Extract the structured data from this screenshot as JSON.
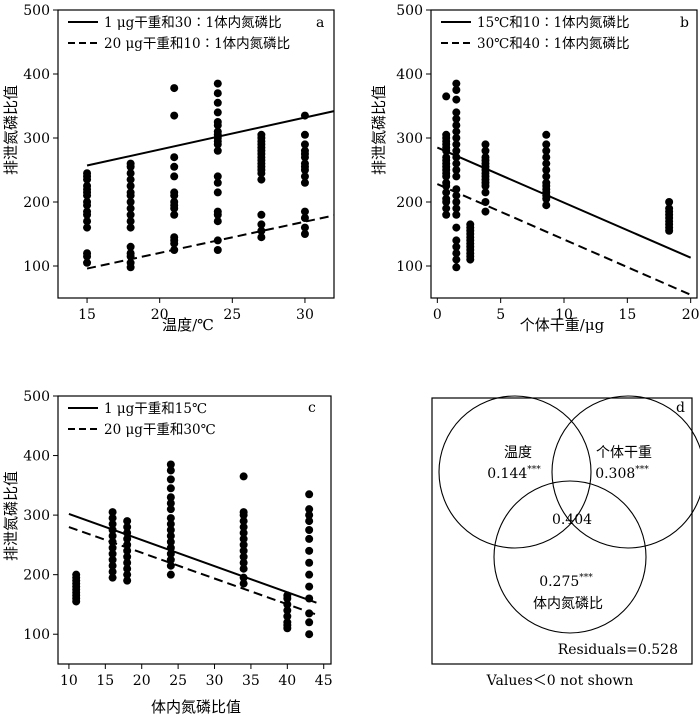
{
  "chart_data": [
    {
      "type": "scatter",
      "panel": "a",
      "xlabel": "温度/℃",
      "ylabel": "排泄氮磷比值",
      "xlim": [
        13,
        32
      ],
      "ylim": [
        50,
        500
      ],
      "xticks": [
        15,
        20,
        25,
        30
      ],
      "yticks": [
        100,
        200,
        300,
        400,
        500
      ],
      "legend": {
        "placement": "top-left"
      },
      "lines": [
        {
          "name": "1 μg干重和30∶1体内氮磷比",
          "style": "solid",
          "x": [
            15,
            32
          ],
          "y": [
            257,
            342
          ]
        },
        {
          "name": "20 μg干重和10∶1体内氮磷比",
          "style": "dashed",
          "x": [
            15,
            32
          ],
          "y": [
            96,
            179
          ]
        }
      ],
      "points": [
        {
          "x": 15,
          "y": [
            105,
            115,
            120,
            160,
            170,
            180,
            185,
            195,
            200,
            210,
            215,
            220,
            225,
            235,
            240,
            245
          ]
        },
        {
          "x": 18,
          "y": [
            98,
            105,
            115,
            120,
            130,
            160,
            170,
            180,
            190,
            200,
            210,
            215,
            225,
            235,
            245,
            255,
            260
          ]
        },
        {
          "x": 21,
          "y": [
            125,
            135,
            140,
            145,
            180,
            190,
            195,
            200,
            210,
            215,
            240,
            255,
            270,
            335,
            378
          ]
        },
        {
          "x": 24,
          "y": [
            125,
            140,
            170,
            180,
            185,
            215,
            230,
            240,
            280,
            290,
            295,
            300,
            305,
            310,
            320,
            325,
            340,
            355,
            370,
            385
          ]
        },
        {
          "x": 27,
          "y": [
            145,
            155,
            165,
            180,
            235,
            245,
            250,
            255,
            260,
            265,
            270,
            275,
            280,
            285,
            290,
            295,
            300,
            305
          ]
        },
        {
          "x": 30,
          "y": [
            150,
            160,
            175,
            185,
            230,
            240,
            250,
            255,
            260,
            270,
            275,
            280,
            290,
            305,
            335
          ]
        }
      ]
    },
    {
      "type": "scatter",
      "panel": "b",
      "xlabel": "个体干重/μg",
      "ylabel": "排泄氮磷比值",
      "xlim": [
        -0.5,
        20.5
      ],
      "ylim": [
        50,
        500
      ],
      "xticks": [
        0,
        5,
        10,
        15,
        20
      ],
      "yticks": [
        100,
        200,
        300,
        400,
        500
      ],
      "legend": {
        "placement": "top-left"
      },
      "lines": [
        {
          "name": "15℃和10∶1体内氮磷比",
          "style": "solid",
          "x": [
            0,
            20
          ],
          "y": [
            285,
            113
          ]
        },
        {
          "name": "30℃和40∶1体内氮磷比",
          "style": "dashed",
          "x": [
            0,
            20
          ],
          "y": [
            228,
            55
          ]
        }
      ],
      "points": [
        {
          "x": 0.7,
          "y": [
            180,
            190,
            200,
            205,
            215,
            225,
            230,
            240,
            245,
            250,
            255,
            260,
            265,
            270,
            280,
            285,
            290,
            295,
            300,
            305,
            365
          ]
        },
        {
          "x": 1.5,
          "y": [
            98,
            110,
            120,
            130,
            140,
            160,
            180,
            190,
            200,
            210,
            220,
            240,
            250,
            260,
            270,
            280,
            290,
            300,
            310,
            320,
            330,
            340,
            360,
            375,
            385
          ]
        },
        {
          "x": 2.6,
          "y": [
            110,
            115,
            120,
            125,
            130,
            135,
            140,
            145,
            150,
            155,
            160,
            165
          ]
        },
        {
          "x": 3.8,
          "y": [
            185,
            200,
            215,
            225,
            230,
            235,
            240,
            245,
            250,
            255,
            260,
            265,
            270,
            280,
            290
          ]
        },
        {
          "x": 8.6,
          "y": [
            195,
            205,
            210,
            215,
            220,
            225,
            230,
            240,
            250,
            260,
            270,
            280,
            290,
            305
          ]
        },
        {
          "x": 18.3,
          "y": [
            155,
            160,
            165,
            170,
            175,
            180,
            185,
            190,
            200
          ]
        }
      ]
    },
    {
      "type": "scatter",
      "panel": "c",
      "xlabel": "体内氮磷比值",
      "ylabel": "排泄氮磷比值",
      "xlim": [
        8.5,
        46
      ],
      "ylim": [
        50,
        500
      ],
      "xticks": [
        10,
        15,
        20,
        25,
        30,
        35,
        40,
        45
      ],
      "yticks": [
        100,
        200,
        300,
        400,
        500
      ],
      "legend": {
        "placement": "top-left"
      },
      "lines": [
        {
          "name": "1 μg干重和15℃",
          "style": "solid",
          "x": [
            10,
            44
          ],
          "y": [
            302,
            153
          ]
        },
        {
          "name": "20 μg干重和30℃",
          "style": "dashed",
          "x": [
            10,
            44
          ],
          "y": [
            280,
            133
          ]
        }
      ],
      "points": [
        {
          "x": 11,
          "y": [
            155,
            160,
            165,
            170,
            175,
            180,
            185,
            190,
            195,
            200
          ]
        },
        {
          "x": 16,
          "y": [
            195,
            205,
            215,
            225,
            235,
            245,
            255,
            265,
            275,
            285,
            295,
            305
          ]
        },
        {
          "x": 18,
          "y": [
            190,
            200,
            210,
            220,
            230,
            240,
            250,
            260,
            270,
            280,
            290
          ]
        },
        {
          "x": 24,
          "y": [
            200,
            215,
            225,
            235,
            245,
            255,
            265,
            275,
            285,
            295,
            310,
            320,
            330,
            345,
            360,
            375,
            385
          ]
        },
        {
          "x": 34,
          "y": [
            185,
            195,
            210,
            220,
            230,
            240,
            250,
            260,
            270,
            280,
            290,
            300,
            305,
            365
          ]
        },
        {
          "x": 40,
          "y": [
            110,
            115,
            120,
            130,
            140,
            150,
            160,
            165
          ]
        },
        {
          "x": 43,
          "y": [
            100,
            120,
            135,
            160,
            180,
            200,
            220,
            240,
            260,
            275,
            290,
            300,
            310,
            335
          ]
        }
      ]
    }
  ],
  "panel_letters": {
    "a": "a",
    "b": "b",
    "c": "c",
    "d": "d"
  },
  "venn": {
    "circles": [
      {
        "label": "温度",
        "value": "0.144",
        "sig": "***"
      },
      {
        "label": "个体干重",
        "value": "0.308",
        "sig": "***"
      },
      {
        "label": "体内氮磷比",
        "value": "0.275",
        "sig": "***"
      }
    ],
    "overlap_value": "0.404",
    "residuals": "Residuals=0.528",
    "caption": "Values＜0 not shown"
  },
  "colors": {
    "ink": "#000000",
    "background": "#ffffff"
  }
}
